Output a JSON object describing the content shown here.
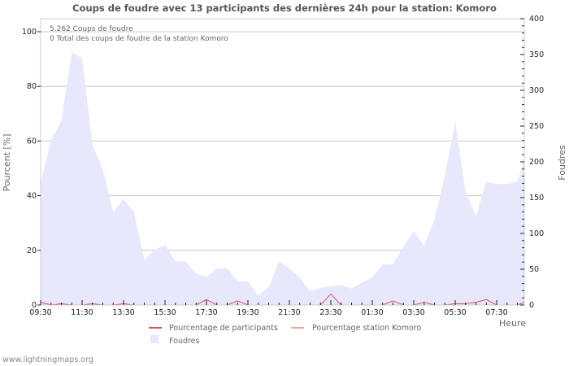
{
  "chart": {
    "title": "Coups de foudre avec 13 participants des dernières 24h pour la station: Komoro",
    "info_line_1": "5.262  Coups de foudre",
    "info_line_2": "0 Total des coups de foudre de la station Komoro",
    "y_left_label": "Pourcent   [%]",
    "y_right_label": "Foudres",
    "x_label": "Heure",
    "footer": "www.lightningmaps.org",
    "legend": {
      "participants": "Pourcentage de participants",
      "station": "Pourcentage station Komoro",
      "strikes": "Foudres"
    },
    "colors": {
      "area": "#e8e8fd",
      "participants_line": "#d94f5c",
      "station_line": "#f4a0a0",
      "grid": "#c8c8c8",
      "text": "#555555"
    }
  },
  "chart_data": {
    "type": "area",
    "title": "Coups de foudre avec 13 participants des dernières 24h pour la station: Komoro",
    "xlabel": "Heure",
    "ylabel": "Pourcent [%]",
    "y2label": "Foudres",
    "ylim": [
      0,
      100
    ],
    "y2lim": [
      0,
      400
    ],
    "y_ticks": [
      0,
      20,
      40,
      60,
      80,
      100
    ],
    "y2_ticks": [
      0,
      50,
      100,
      150,
      200,
      250,
      300,
      350,
      400
    ],
    "x_tick_labels": [
      "09:30",
      "11:30",
      "13:30",
      "15:30",
      "17:30",
      "19:30",
      "21:30",
      "23:30",
      "01:30",
      "03:30",
      "05:30",
      "07:30"
    ],
    "grid": true,
    "legend_position": "bottom",
    "x": [
      "09:30",
      "10:00",
      "10:30",
      "11:00",
      "11:30",
      "12:00",
      "12:30",
      "13:00",
      "13:30",
      "14:00",
      "14:30",
      "15:00",
      "15:30",
      "16:00",
      "16:30",
      "17:00",
      "17:30",
      "18:00",
      "18:30",
      "19:00",
      "19:30",
      "20:00",
      "20:30",
      "21:00",
      "21:30",
      "22:00",
      "22:30",
      "23:00",
      "23:30",
      "00:00",
      "00:30",
      "01:00",
      "01:30",
      "02:00",
      "02:30",
      "03:00",
      "03:30",
      "04:00",
      "04:30",
      "05:00",
      "05:30",
      "06:00",
      "06:30",
      "07:00",
      "07:30",
      "08:00",
      "08:30",
      "09:00"
    ],
    "series": [
      {
        "name": "Foudres",
        "axis": "right",
        "type": "area",
        "values": [
          170,
          230,
          258,
          353,
          345,
          224,
          190,
          130,
          148,
          130,
          63,
          77,
          84,
          61,
          61,
          44,
          39,
          51,
          51,
          33,
          33,
          13,
          25,
          61,
          51,
          38,
          19,
          24,
          26,
          28,
          23,
          31,
          39,
          57,
          57,
          82,
          103,
          83,
          119,
          182,
          255,
          159,
          124,
          172,
          169,
          169,
          173,
          205
        ]
      },
      {
        "name": "Pourcentage de participants",
        "axis": "left",
        "type": "line",
        "values": [
          1,
          0,
          0.5,
          0,
          0,
          0.5,
          0,
          0,
          0.5,
          0,
          0,
          0,
          0,
          0,
          0,
          0,
          2,
          0,
          0,
          1.5,
          0,
          0,
          0,
          0,
          0,
          0,
          0,
          0,
          4,
          0,
          0,
          0,
          0,
          0,
          1.5,
          0,
          0,
          1,
          0,
          0,
          0.5,
          0.5,
          1,
          2,
          0,
          0,
          0,
          1
        ]
      },
      {
        "name": "Pourcentage station Komoro",
        "axis": "left",
        "type": "line",
        "values": [
          0,
          0,
          0,
          0,
          0,
          0,
          0,
          0,
          0,
          0,
          0,
          0,
          0,
          0,
          0,
          0,
          0,
          0,
          0,
          0,
          0,
          0,
          0,
          0,
          0,
          0,
          0,
          0,
          0,
          0,
          0,
          0,
          0,
          0,
          0,
          0,
          0,
          0,
          0,
          0,
          0,
          0,
          0,
          0,
          0,
          0,
          0,
          0
        ]
      }
    ],
    "annotations": [
      "5.262  Coups de foudre",
      "0 Total des coups de foudre de la station Komoro"
    ]
  }
}
